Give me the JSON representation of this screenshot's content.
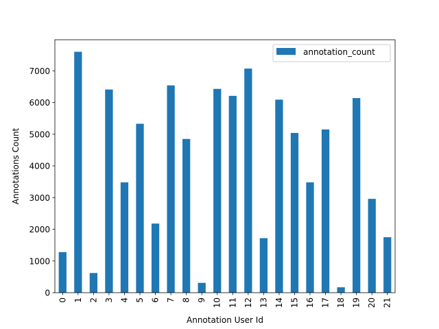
{
  "chart_data": {
    "type": "bar",
    "xlabel": "Annotation User Id",
    "ylabel": "Annotations Count",
    "categories": [
      "0",
      "1",
      "2",
      "3",
      "4",
      "5",
      "6",
      "7",
      "8",
      "9",
      "10",
      "11",
      "12",
      "13",
      "14",
      "15",
      "16",
      "17",
      "18",
      "19",
      "20",
      "21"
    ],
    "series": [
      {
        "name": "annotation_count",
        "color": "#1f77b4",
        "values": [
          1280,
          7600,
          620,
          6410,
          3480,
          5330,
          2180,
          6540,
          4850,
          310,
          6430,
          6210,
          7070,
          1720,
          6090,
          5040,
          3480,
          5150,
          170,
          6140,
          2960,
          1750
        ]
      }
    ],
    "ylim": [
      0,
      7980
    ],
    "yticks": [
      0,
      1000,
      2000,
      3000,
      4000,
      5000,
      6000,
      7000
    ],
    "ytick_labels": [
      "0",
      "1000",
      "2000",
      "3000",
      "4000",
      "5000",
      "6000",
      "7000"
    ],
    "legend_position": "top-right",
    "grid": false
  }
}
